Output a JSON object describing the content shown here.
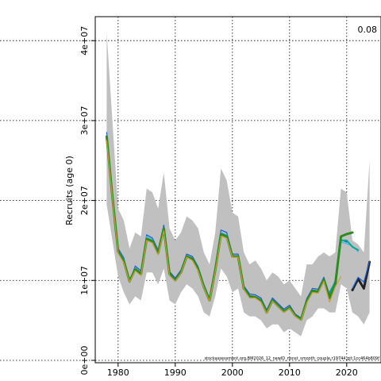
{
  "chart_data": {
    "type": "line",
    "ylabel": "Recruits (age 0)",
    "corner_label": "0.08",
    "source_note": "stockassessment.org,BM2026_12_newID_nonst_smooth_couple,r19744,git:1cc464b809f",
    "xlim": [
      1976,
      2026
    ],
    "ylim": [
      -300000,
      43000000
    ],
    "x_ticks": [
      1980,
      1990,
      2000,
      2010,
      2020
    ],
    "x_tick_labels": [
      "1980",
      "1990",
      "2000",
      "2010",
      "2020"
    ],
    "y_ticks": [
      0,
      10000000,
      20000000,
      30000000,
      40000000
    ],
    "y_tick_labels": [
      "0e+00",
      "1e+07",
      "2e+07",
      "3e+07",
      "4e+07"
    ],
    "grid": true,
    "colors": {
      "band": "#c0c0c0",
      "main": "#2e8b22",
      "overlay": "#c8a032",
      "peel_1": "#1a5fd0",
      "peel_2": "#40b8e8",
      "peel_3": "#00a898",
      "projection": "#222222"
    },
    "ci_band": {
      "x": [
        1978,
        1979,
        1980,
        1981,
        1982,
        1983,
        1984,
        1985,
        1986,
        1987,
        1988,
        1989,
        1990,
        1991,
        1992,
        1993,
        1994,
        1995,
        1996,
        1997,
        1998,
        1999,
        2000,
        2001,
        2002,
        2003,
        2004,
        2005,
        2006,
        2007,
        2008,
        2009,
        2010,
        2011,
        2012,
        2013,
        2014,
        2015,
        2016,
        2017,
        2018,
        2019,
        2020,
        2021,
        2022,
        2023,
        2024
      ],
      "upper": [
        41000000,
        30000000,
        19000000,
        17500000,
        14000000,
        16000000,
        15500000,
        21500000,
        21000000,
        19000000,
        23500000,
        16500000,
        15000000,
        16000000,
        18000000,
        17500000,
        16500000,
        13500000,
        12000000,
        16000000,
        24000000,
        22500000,
        18500000,
        18000000,
        13500000,
        12000000,
        12500000,
        11500000,
        10000000,
        11000000,
        10500000,
        9500000,
        10000000,
        9000000,
        8000000,
        12000000,
        12000000,
        13000000,
        13500000,
        13000000,
        13500000,
        21500000,
        21000000,
        15000000,
        14500000,
        13500000,
        25000000
      ],
      "lower": [
        19500000,
        15000000,
        10500000,
        8500000,
        7000000,
        8000000,
        7500000,
        11000000,
        11000000,
        9500000,
        11500000,
        7500000,
        7000000,
        8500000,
        9500000,
        9000000,
        8000000,
        6000000,
        5500000,
        8000000,
        11500000,
        10500000,
        8500000,
        9000000,
        6000000,
        5500000,
        5500000,
        5000000,
        4000000,
        4500000,
        4500000,
        3500000,
        4000000,
        3500000,
        3000000,
        5000000,
        5500000,
        6500000,
        6500000,
        6000000,
        6000000,
        9500000,
        9000000,
        6000000,
        5500000,
        4500000,
        6000000
      ]
    },
    "series": [
      {
        "role": "peel_1",
        "x": [
          1978,
          1979,
          1980,
          1981,
          1982,
          1983,
          1984,
          1985,
          1986,
          1987,
          1988,
          1989,
          1990,
          1991,
          1992,
          1993,
          1994,
          1995,
          1996,
          1997,
          1998,
          1999,
          2000,
          2001,
          2002,
          2003,
          2004,
          2005,
          2006,
          2007,
          2008,
          2009,
          2010,
          2011,
          2012,
          2013,
          2014,
          2015,
          2016,
          2017,
          2018,
          2019,
          2020
        ],
        "values": [
          28500000,
          21000000,
          14000000,
          12800000,
          9800000,
          11800000,
          11200000,
          15700000,
          15300000,
          13800000,
          16900000,
          11100000,
          10300000,
          11300000,
          13300000,
          13000000,
          11700000,
          9500000,
          7700000,
          11700000,
          16300000,
          16000000,
          13300000,
          13300000,
          9300000,
          8300000,
          8200000,
          7800000,
          6300000,
          7800000,
          7100000,
          6400000,
          6900000,
          5800000,
          5300000,
          7700000,
          9000000,
          8900000,
          10400000,
          8200000,
          10000000,
          15100000,
          14800000
        ]
      },
      {
        "role": "peel_2",
        "x": [
          1978,
          1979,
          1980,
          1981,
          1982,
          1983,
          1984,
          1985,
          1986,
          1987,
          1988,
          1989,
          1990,
          1991,
          1992,
          1993,
          1994,
          1995,
          1996,
          1997,
          1998,
          1999,
          2000,
          2001,
          2002,
          2003,
          2004,
          2005,
          2006,
          2007,
          2008,
          2009,
          2010,
          2011,
          2012,
          2013,
          2014,
          2015,
          2016,
          2017,
          2018,
          2019,
          2020,
          2021,
          2022
        ],
        "values": [
          28200000,
          20800000,
          13800000,
          12600000,
          9700000,
          11600000,
          11000000,
          15500000,
          15100000,
          13600000,
          16600000,
          10900000,
          10100000,
          11100000,
          13100000,
          12800000,
          11500000,
          9300000,
          7500000,
          11500000,
          16000000,
          15700000,
          13100000,
          13100000,
          9100000,
          8100000,
          8000000,
          7600000,
          6100000,
          7600000,
          6900000,
          6200000,
          6700000,
          5600000,
          5100000,
          7500000,
          8800000,
          8700000,
          10200000,
          8000000,
          9800000,
          14800000,
          14600000,
          14300000,
          13600000
        ]
      },
      {
        "role": "peel_3",
        "x": [
          2017,
          2018,
          2019,
          2020,
          2021,
          2022
        ],
        "values": [
          8500000,
          9800000,
          15000000,
          15000000,
          14200000,
          13800000
        ]
      },
      {
        "role": "main",
        "x": [
          1978,
          1979,
          1980,
          1981,
          1982,
          1983,
          1984,
          1985,
          1986,
          1987,
          1988,
          1989,
          1990,
          1991,
          1992,
          1993,
          1994,
          1995,
          1996,
          1997,
          1998,
          1999,
          2000,
          2001,
          2002,
          2003,
          2004,
          2005,
          2006,
          2007,
          2008,
          2009,
          2010,
          2011,
          2012,
          2013,
          2014,
          2015,
          2016,
          2017,
          2018,
          2019,
          2020,
          2021
        ],
        "values": [
          28000000,
          20500000,
          13600000,
          12400000,
          9900000,
          11400000,
          10800000,
          15200000,
          14900000,
          13400000,
          16500000,
          10800000,
          10000000,
          11000000,
          13000000,
          12700000,
          11400000,
          9200000,
          7500000,
          11300000,
          15800000,
          15500000,
          13000000,
          13000000,
          9000000,
          8000000,
          7900000,
          7500000,
          6000000,
          7500000,
          6800000,
          6100000,
          6600000,
          5600000,
          5100000,
          7400000,
          8700000,
          8600000,
          10100000,
          7800000,
          9500000,
          15500000,
          15800000,
          16000000
        ]
      },
      {
        "role": "overlay",
        "x": [
          1978,
          1979,
          1980,
          1981,
          1982,
          1983,
          1984,
          1985,
          1986,
          1987,
          1988,
          1989,
          1990,
          1991,
          1992,
          1993,
          1994,
          1995,
          1996,
          1997,
          1998,
          1999,
          2000,
          2001,
          2002,
          2003,
          2004,
          2005,
          2006,
          2007,
          2008,
          2009,
          2010,
          2011,
          2012,
          2013,
          2014,
          2015,
          2016,
          2017,
          2018,
          2019
        ],
        "values": [
          27500000,
          20300000,
          13400000,
          12200000,
          9800000,
          11200000,
          10600000,
          15000000,
          14700000,
          13200000,
          16200000,
          10600000,
          9900000,
          10900000,
          12900000,
          12500000,
          11200000,
          9100000,
          7400000,
          11100000,
          15500000,
          15300000,
          12900000,
          12900000,
          8900000,
          7800000,
          7800000,
          7300000,
          5900000,
          7400000,
          6700000,
          6000000,
          6500000,
          5500000,
          5000000,
          7200000,
          8500000,
          8400000,
          9900000,
          7300000,
          9200000,
          10500000
        ]
      },
      {
        "role": "projection",
        "x": [
          2021,
          2022,
          2023,
          2024
        ],
        "values": [
          8800000,
          10200000,
          9000000,
          12300000
        ]
      },
      {
        "role": "projection_alt",
        "x": [
          2021,
          2022,
          2023,
          2024
        ],
        "values": [
          9000000,
          10400000,
          9800000,
          12400000
        ]
      }
    ]
  }
}
